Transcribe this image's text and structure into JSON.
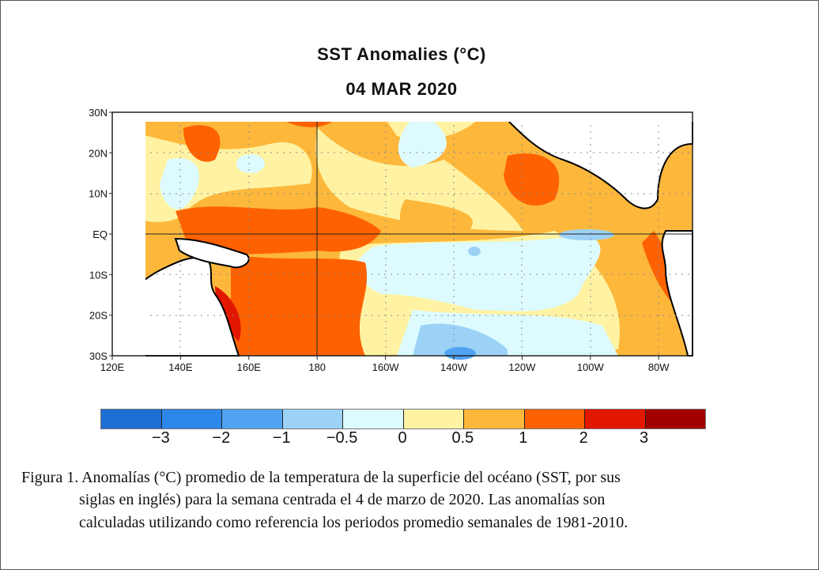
{
  "title": "SST Anomalies (°C)",
  "date": "04 MAR 2020",
  "map": {
    "lat_labels": [
      "30N",
      "20N",
      "10N",
      "EQ",
      "10S",
      "20S",
      "30S"
    ],
    "lon_labels": [
      "120E",
      "140E",
      "160E",
      "180",
      "160W",
      "140W",
      "120W",
      "100W",
      "80W"
    ],
    "lon_range": [
      "120E",
      "70W"
    ],
    "lat_range": [
      "30S",
      "30N"
    ]
  },
  "colorbar": {
    "colors": [
      "#1e6fd4",
      "#2d87ea",
      "#4fa3f2",
      "#9dd2f7",
      "#ddfbff",
      "#fff3a3",
      "#fdb83c",
      "#fe6200",
      "#e21700",
      "#a10000"
    ],
    "labels": [
      "−3",
      "−2",
      "−1",
      "−0.5",
      "0",
      "0.5",
      "1",
      "2",
      "3"
    ]
  },
  "caption": {
    "line1": "Figura 1. Anomalías (°C) promedio de la temperatura de la superficie del océano (SST, por sus",
    "line2": "siglas en inglés) para la semana centrada el 4 de marzo de 2020. Las anomalías son",
    "line3": "calculadas utilizando como referencia los periodos promedio semanales de 1981-2010."
  }
}
